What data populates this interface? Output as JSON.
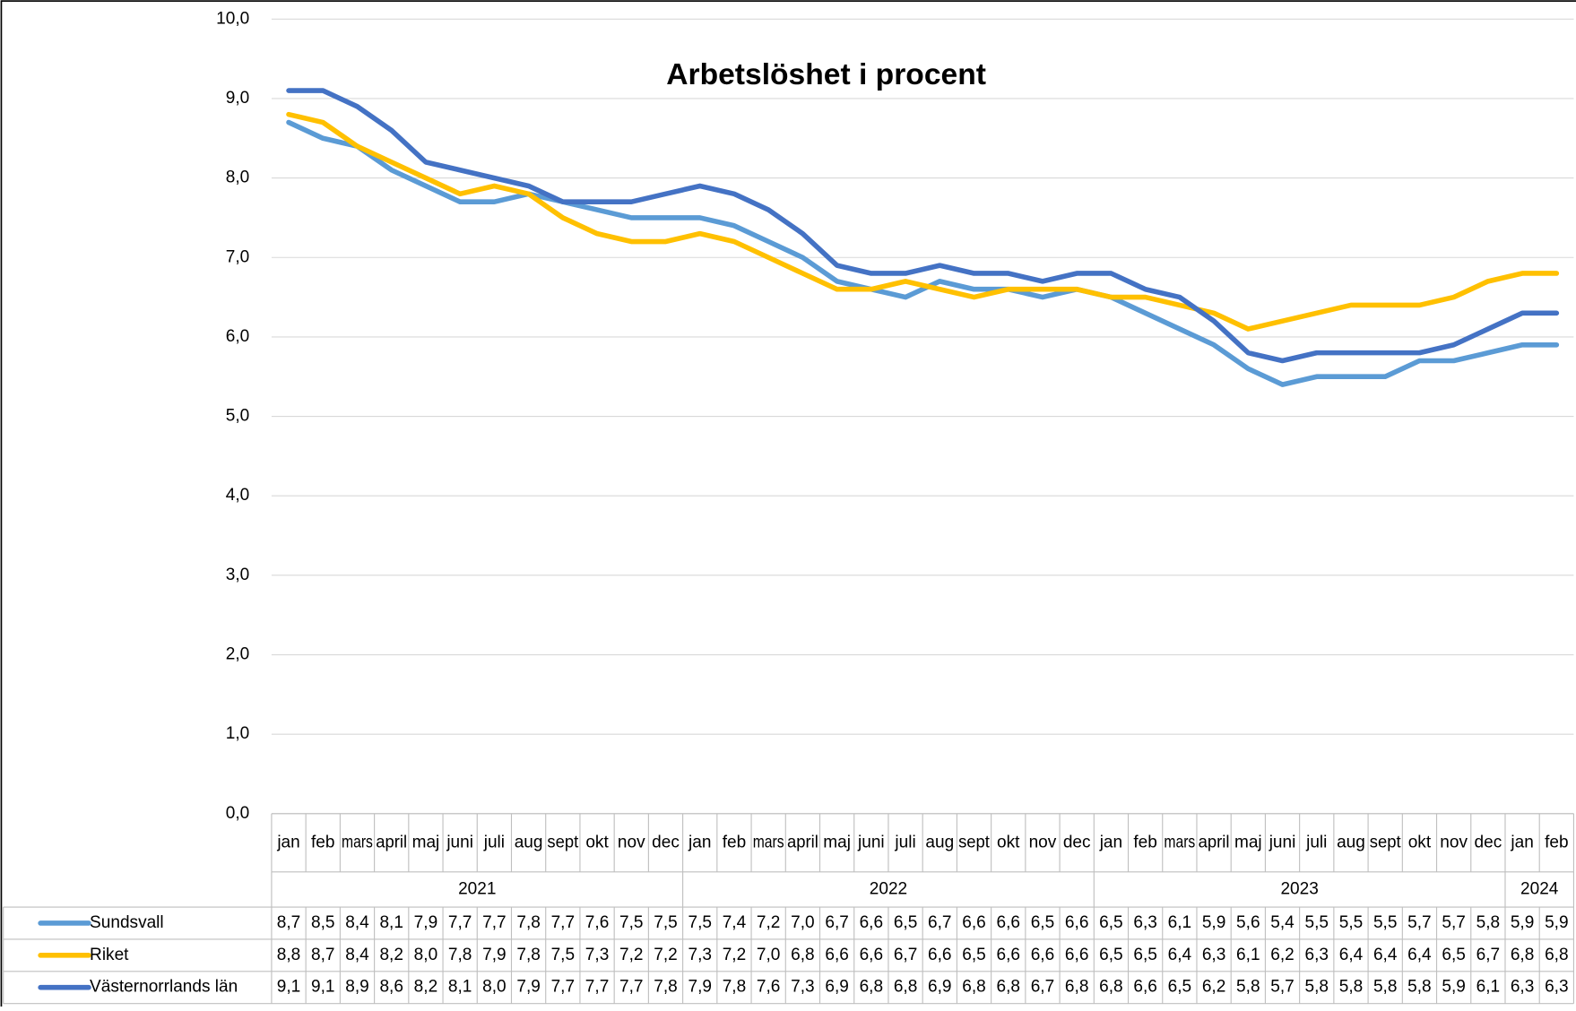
{
  "chart_data": {
    "type": "line",
    "title": "Arbetslöshet i procent",
    "categories": [
      "jan",
      "feb",
      "mars",
      "april",
      "maj",
      "juni",
      "juli",
      "aug",
      "sept",
      "okt",
      "nov",
      "dec",
      "jan",
      "feb",
      "mars",
      "april",
      "maj",
      "juni",
      "juli",
      "aug",
      "sept",
      "okt",
      "nov",
      "dec",
      "jan",
      "feb",
      "mars",
      "april",
      "maj",
      "juni",
      "juli",
      "aug",
      "sept",
      "okt",
      "nov",
      "dec",
      "jan",
      "feb"
    ],
    "year_labels": [
      "2021",
      null,
      null,
      null,
      null,
      null,
      null,
      null,
      null,
      null,
      null,
      null,
      "2022",
      null,
      null,
      null,
      null,
      null,
      null,
      null,
      null,
      null,
      null,
      null,
      "2023",
      null,
      null,
      null,
      null,
      null,
      null,
      null,
      null,
      null,
      null,
      null,
      "2024",
      null
    ],
    "ylim": [
      0,
      10
    ],
    "yticks": [
      {
        "value": 0,
        "label": "0,0"
      },
      {
        "value": 1,
        "label": "1,0"
      },
      {
        "value": 2,
        "label": "2,0"
      },
      {
        "value": 3,
        "label": "3,0"
      },
      {
        "value": 4,
        "label": "4,0"
      },
      {
        "value": 5,
        "label": "5,0"
      },
      {
        "value": 6,
        "label": "6,0"
      },
      {
        "value": 7,
        "label": "7,0"
      },
      {
        "value": 8,
        "label": "8,0"
      },
      {
        "value": 9,
        "label": "9,0"
      },
      {
        "value": 10,
        "label": "10,0"
      }
    ],
    "grid": true,
    "series": [
      {
        "name": "Sundsvall",
        "color": "#5b9bd5",
        "values": [
          8.7,
          8.5,
          8.4,
          8.1,
          7.9,
          7.7,
          7.7,
          7.8,
          7.7,
          7.6,
          7.5,
          7.5,
          7.5,
          7.4,
          7.2,
          7.0,
          6.7,
          6.6,
          6.5,
          6.7,
          6.6,
          6.6,
          6.5,
          6.6,
          6.5,
          6.3,
          6.1,
          5.9,
          5.6,
          5.4,
          5.5,
          5.5,
          5.5,
          5.7,
          5.7,
          5.8,
          5.9,
          5.9
        ],
        "value_labels": [
          "8,7",
          "8,5",
          "8,4",
          "8,1",
          "7,9",
          "7,7",
          "7,7",
          "7,8",
          "7,7",
          "7,6",
          "7,5",
          "7,5",
          "7,5",
          "7,4",
          "7,2",
          "7,0",
          "6,7",
          "6,6",
          "6,5",
          "6,7",
          "6,6",
          "6,6",
          "6,5",
          "6,6",
          "6,5",
          "6,3",
          "6,1",
          "5,9",
          "5,6",
          "5,4",
          "5,5",
          "5,5",
          "5,5",
          "5,7",
          "5,7",
          "5,8",
          "5,9",
          "5,9"
        ]
      },
      {
        "name": "Riket",
        "color": "#ffc000",
        "values": [
          8.8,
          8.7,
          8.4,
          8.2,
          8.0,
          7.8,
          7.9,
          7.8,
          7.5,
          7.3,
          7.2,
          7.2,
          7.3,
          7.2,
          7.0,
          6.8,
          6.6,
          6.6,
          6.7,
          6.6,
          6.5,
          6.6,
          6.6,
          6.6,
          6.5,
          6.5,
          6.4,
          6.3,
          6.1,
          6.2,
          6.3,
          6.4,
          6.4,
          6.4,
          6.5,
          6.7,
          6.8,
          6.8
        ],
        "value_labels": [
          "8,8",
          "8,7",
          "8,4",
          "8,2",
          "8,0",
          "7,8",
          "7,9",
          "7,8",
          "7,5",
          "7,3",
          "7,2",
          "7,2",
          "7,3",
          "7,2",
          "7,0",
          "6,8",
          "6,6",
          "6,6",
          "6,7",
          "6,6",
          "6,5",
          "6,6",
          "6,6",
          "6,6",
          "6,5",
          "6,5",
          "6,4",
          "6,3",
          "6,1",
          "6,2",
          "6,3",
          "6,4",
          "6,4",
          "6,4",
          "6,5",
          "6,7",
          "6,8",
          "6,8"
        ]
      },
      {
        "name": "Västernorrlands län",
        "color": "#4472c4",
        "values": [
          9.1,
          9.1,
          8.9,
          8.6,
          8.2,
          8.1,
          8.0,
          7.9,
          7.7,
          7.7,
          7.7,
          7.8,
          7.9,
          7.8,
          7.6,
          7.3,
          6.9,
          6.8,
          6.8,
          6.9,
          6.8,
          6.8,
          6.7,
          6.8,
          6.8,
          6.6,
          6.5,
          6.2,
          5.8,
          5.7,
          5.8,
          5.8,
          5.8,
          5.8,
          5.9,
          6.1,
          6.3,
          6.3
        ],
        "value_labels": [
          "9,1",
          "9,1",
          "8,9",
          "8,6",
          "8,2",
          "8,1",
          "8,0",
          "7,9",
          "7,7",
          "7,7",
          "7,7",
          "7,8",
          "7,9",
          "7,8",
          "7,6",
          "7,3",
          "6,9",
          "6,8",
          "6,8",
          "6,9",
          "6,8",
          "6,8",
          "6,7",
          "6,8",
          "6,8",
          "6,6",
          "6,5",
          "6,2",
          "5,8",
          "5,7",
          "5,8",
          "5,8",
          "5,8",
          "5,8",
          "5,9",
          "6,1",
          "6,3",
          "6,3"
        ]
      }
    ]
  }
}
